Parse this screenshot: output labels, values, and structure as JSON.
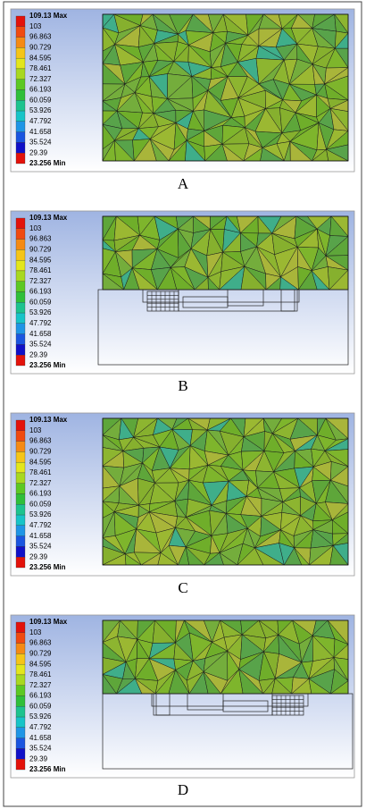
{
  "panels": [
    {
      "label": "A",
      "legend": [
        "109.13 Max",
        "103",
        "96.863",
        "90.729",
        "84.595",
        "78.461",
        "72.327",
        "66.193",
        "60.059",
        "53.926",
        "47.792",
        "41.658",
        "35.524",
        "29.39",
        "23.256 Min"
      ]
    },
    {
      "label": "B",
      "legend": [
        "109.13 Max",
        "103",
        "96.863",
        "90.729",
        "84.595",
        "78.461",
        "72.327",
        "66.193",
        "60.059",
        "53.926",
        "47.792",
        "41.658",
        "35.524",
        "29.39",
        "23.256 Min"
      ]
    },
    {
      "label": "C",
      "legend": [
        "109.13 Max",
        "103",
        "96.863",
        "90.729",
        "84.595",
        "78.461",
        "72.327",
        "66.193",
        "60.059",
        "53.926",
        "47.792",
        "41.658",
        "35.524",
        "29.39",
        "23.256 Min"
      ]
    },
    {
      "label": "D",
      "legend": [
        "109.13 Max",
        "103",
        "96.863",
        "90.729",
        "84.595",
        "78.461",
        "72.327",
        "66.193",
        "60.059",
        "53.926",
        "47.792",
        "41.658",
        "35.524",
        "29.39",
        "23.256 Min"
      ]
    }
  ]
}
